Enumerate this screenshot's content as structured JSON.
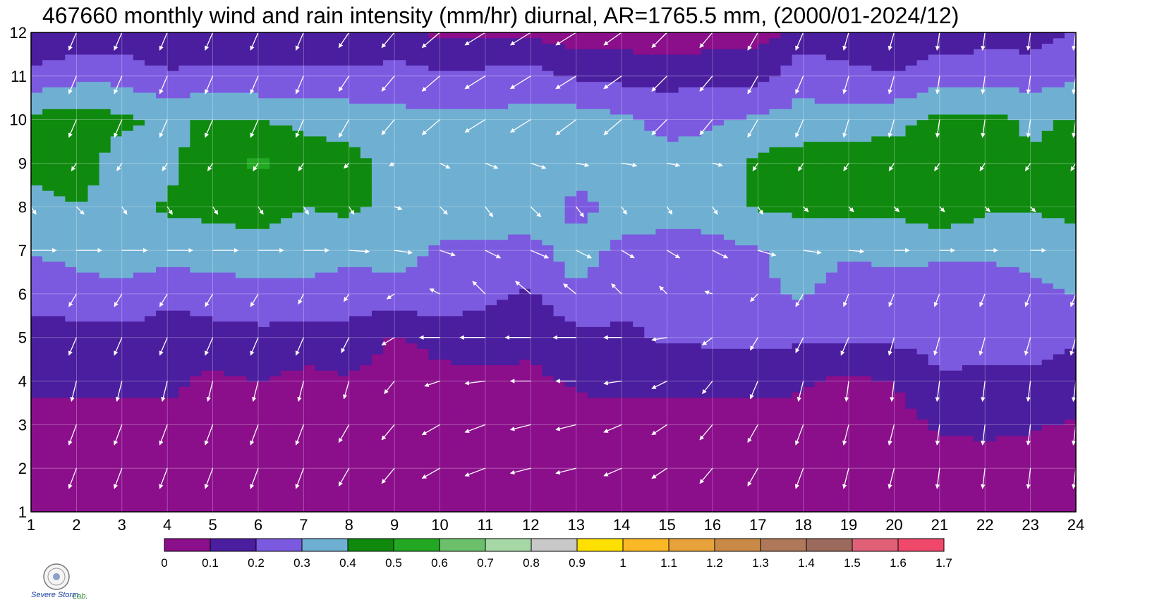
{
  "chart_data": {
    "type": "heatmap",
    "title": "467660 monthly wind and rain intensity (mm/hr) diurnal, AR=1765.5 mm, (2000/01-2024/12)",
    "x_ticks": [
      1,
      2,
      3,
      4,
      5,
      6,
      7,
      8,
      9,
      10,
      11,
      12,
      13,
      14,
      15,
      16,
      17,
      18,
      19,
      20,
      21,
      22,
      23,
      24
    ],
    "y_ticks": [
      1,
      2,
      3,
      4,
      5,
      6,
      7,
      8,
      9,
      10,
      11,
      12
    ],
    "xlim": [
      1,
      24
    ],
    "ylim": [
      1,
      12
    ],
    "grid": true,
    "colorbar": {
      "levels": [
        0,
        0.1,
        0.2,
        0.3,
        0.4,
        0.5,
        0.6,
        0.7,
        0.8,
        0.9,
        1,
        1.1,
        1.2,
        1.3,
        1.4,
        1.5,
        1.6,
        1.7
      ],
      "labels": [
        "0",
        "0.1",
        "0.2",
        "0.3",
        "0.4",
        "0.5",
        "0.6",
        "0.7",
        "0.8",
        "0.9",
        "1",
        "1.1",
        "1.2",
        "1.3",
        "1.4",
        "1.5",
        "1.6",
        "1.7"
      ],
      "colors": [
        "#8b0e8b",
        "#4a1e9e",
        "#7b5ae0",
        "#6fb0d2",
        "#0f8a0f",
        "#22a822",
        "#6cc06c",
        "#a6d8a6",
        "#c8c8c8",
        "#ffe000",
        "#fbb826",
        "#e8a23c",
        "#c98a48",
        "#b0785a",
        "#9c6a5c",
        "#e06078",
        "#f0486a",
        "#d82a40"
      ]
    },
    "rain_grid": [
      [
        0.05,
        0.05,
        0.05,
        0.05,
        0.05,
        0.05,
        0.05,
        0.05,
        0.05,
        0.05,
        0.05,
        0.05,
        0.05,
        0.05,
        0.05,
        0.05,
        0.05,
        0.05,
        0.05,
        0.05,
        0.05,
        0.05,
        0.05,
        0.05
      ],
      [
        0.05,
        0.05,
        0.05,
        0.05,
        0.05,
        0.05,
        0.05,
        0.05,
        0.05,
        0.05,
        0.05,
        0.05,
        0.05,
        0.05,
        0.05,
        0.05,
        0.05,
        0.05,
        0.05,
        0.05,
        0.05,
        0.05,
        0.05,
        0.05
      ],
      [
        0.07,
        0.07,
        0.07,
        0.07,
        0.07,
        0.07,
        0.07,
        0.07,
        0.07,
        0.07,
        0.07,
        0.07,
        0.07,
        0.07,
        0.07,
        0.07,
        0.07,
        0.07,
        0.07,
        0.07,
        0.11,
        0.13,
        0.11,
        0.09
      ],
      [
        0.12,
        0.12,
        0.12,
        0.12,
        0.08,
        0.1,
        0.07,
        0.09,
        0.06,
        0.07,
        0.08,
        0.08,
        0.11,
        0.12,
        0.12,
        0.12,
        0.12,
        0.11,
        0.08,
        0.1,
        0.18,
        0.17,
        0.18,
        0.15
      ],
      [
        0.14,
        0.16,
        0.16,
        0.15,
        0.16,
        0.17,
        0.16,
        0.16,
        0.09,
        0.13,
        0.14,
        0.12,
        0.17,
        0.18,
        0.21,
        0.22,
        0.22,
        0.22,
        0.21,
        0.22,
        0.25,
        0.26,
        0.24,
        0.21
      ],
      [
        0.25,
        0.26,
        0.28,
        0.22,
        0.25,
        0.27,
        0.27,
        0.25,
        0.26,
        0.29,
        0.22,
        0.19,
        0.29,
        0.23,
        0.24,
        0.28,
        0.29,
        0.31,
        0.26,
        0.25,
        0.27,
        0.22,
        0.28,
        0.3
      ],
      [
        0.3,
        0.33,
        0.34,
        0.35,
        0.35,
        0.36,
        0.35,
        0.33,
        0.34,
        0.28,
        0.27,
        0.27,
        0.34,
        0.28,
        0.27,
        0.27,
        0.29,
        0.33,
        0.31,
        0.33,
        0.31,
        0.33,
        0.33,
        0.38
      ],
      [
        0.35,
        0.4,
        0.36,
        0.41,
        0.43,
        0.44,
        0.4,
        0.42,
        0.37,
        0.39,
        0.37,
        0.36,
        0.27,
        0.34,
        0.33,
        0.34,
        0.41,
        0.42,
        0.43,
        0.42,
        0.48,
        0.41,
        0.41,
        0.42
      ],
      [
        0.44,
        0.45,
        0.35,
        0.38,
        0.45,
        0.52,
        0.44,
        0.43,
        0.36,
        0.35,
        0.39,
        0.35,
        0.34,
        0.32,
        0.32,
        0.33,
        0.42,
        0.46,
        0.48,
        0.45,
        0.46,
        0.45,
        0.42,
        0.42
      ],
      [
        0.43,
        0.45,
        0.42,
        0.38,
        0.41,
        0.4,
        0.38,
        0.36,
        0.33,
        0.32,
        0.33,
        0.33,
        0.35,
        0.32,
        0.28,
        0.29,
        0.32,
        0.33,
        0.33,
        0.37,
        0.42,
        0.43,
        0.38,
        0.41
      ],
      [
        0.23,
        0.27,
        0.27,
        0.22,
        0.23,
        0.22,
        0.23,
        0.22,
        0.24,
        0.22,
        0.23,
        0.24,
        0.19,
        0.17,
        0.16,
        0.17,
        0.16,
        0.28,
        0.23,
        0.21,
        0.26,
        0.27,
        0.25,
        0.28
      ],
      [
        0.09,
        0.13,
        0.13,
        0.09,
        0.11,
        0.13,
        0.12,
        0.12,
        0.13,
        0.08,
        0.07,
        0.08,
        0.05,
        0.05,
        0.04,
        0.05,
        0.06,
        0.13,
        0.13,
        0.12,
        0.14,
        0.15,
        0.16,
        0.2
      ]
    ],
    "wind_u": [
      [
        -0.2,
        -0.2,
        -0.3,
        -0.3,
        -0.3,
        -0.3,
        -0.3,
        -0.3,
        -0.4,
        -0.6,
        -0.7,
        -0.7,
        -0.7,
        -0.7,
        -0.6,
        -0.4,
        -0.3,
        -0.3,
        -0.2,
        -0.2,
        -0.1,
        -0.1,
        -0.1,
        -0.1
      ],
      [
        -0.2,
        -0.3,
        -0.3,
        -0.3,
        -0.3,
        -0.3,
        -0.3,
        -0.4,
        -0.5,
        -0.7,
        -0.8,
        -0.8,
        -0.8,
        -0.7,
        -0.6,
        -0.5,
        -0.4,
        -0.3,
        -0.2,
        -0.2,
        -0.1,
        -0.1,
        -0.1,
        -0.1
      ],
      [
        -0.2,
        -0.3,
        -0.3,
        -0.3,
        -0.3,
        -0.3,
        -0.3,
        -0.4,
        -0.5,
        -0.7,
        -0.8,
        -0.8,
        -0.8,
        -0.7,
        -0.6,
        -0.5,
        -0.4,
        -0.3,
        -0.2,
        -0.2,
        -0.1,
        -0.1,
        -0.1,
        -0.1
      ],
      [
        -0.1,
        -0.2,
        -0.2,
        -0.2,
        -0.2,
        -0.2,
        -0.2,
        -0.2,
        -0.4,
        -0.6,
        -0.8,
        -0.8,
        -0.8,
        -0.7,
        -0.6,
        -0.4,
        -0.3,
        -0.2,
        -0.1,
        -0.1,
        -0.1,
        -0.1,
        -0.1,
        -0.1
      ],
      [
        -0.2,
        -0.3,
        -0.3,
        -0.3,
        -0.3,
        -0.3,
        -0.3,
        -0.3,
        -0.5,
        -0.8,
        -1.0,
        -1.0,
        -0.9,
        -0.7,
        -0.6,
        -0.4,
        -0.3,
        -0.3,
        -0.3,
        -0.2,
        -0.2,
        -0.2,
        -0.2,
        -0.2
      ],
      [
        -0.2,
        -0.3,
        -0.3,
        -0.3,
        -0.3,
        -0.3,
        -0.2,
        -0.2,
        -0.3,
        -0.4,
        -0.5,
        -0.6,
        -0.5,
        -0.4,
        -0.3,
        -0.3,
        -0.3,
        -0.3,
        -0.2,
        -0.2,
        -0.2,
        -0.2,
        -0.2,
        -0.2
      ],
      [
        1.0,
        1.0,
        1.0,
        1.0,
        1.0,
        1.0,
        1.0,
        0.8,
        0.7,
        0.6,
        0.6,
        0.7,
        0.6,
        0.5,
        0.5,
        0.6,
        0.7,
        0.7,
        0.6,
        0.6,
        0.6,
        0.5,
        0.6,
        0.8
      ],
      [
        0.2,
        0.3,
        0.2,
        0.2,
        0.2,
        0.2,
        0.2,
        0.2,
        0.3,
        0.3,
        0.3,
        0.4,
        0.3,
        0.2,
        0.2,
        0.2,
        0.2,
        0.2,
        0.2,
        0.2,
        0.2,
        0.2,
        0.2,
        0.2
      ],
      [
        -0.2,
        -0.2,
        -0.2,
        -0.2,
        -0.2,
        -0.2,
        -0.2,
        -0.2,
        -0.2,
        0.4,
        0.5,
        0.6,
        0.5,
        0.6,
        0.5,
        0.4,
        -0.2,
        -0.2,
        -0.2,
        -0.2,
        -0.2,
        -0.2,
        -0.2,
        -0.2
      ],
      [
        -0.2,
        -0.3,
        -0.3,
        -0.3,
        -0.3,
        -0.3,
        -0.3,
        -0.4,
        -0.5,
        -0.7,
        -0.8,
        -0.8,
        -0.8,
        -0.7,
        -0.6,
        -0.5,
        -0.4,
        -0.3,
        -0.2,
        -0.2,
        -0.1,
        -0.1,
        -0.1,
        -0.1
      ],
      [
        -0.2,
        -0.3,
        -0.3,
        -0.3,
        -0.3,
        -0.3,
        -0.3,
        -0.4,
        -0.5,
        -0.7,
        -0.8,
        -0.8,
        -0.8,
        -0.7,
        -0.6,
        -0.5,
        -0.4,
        -0.3,
        -0.2,
        -0.2,
        -0.1,
        -0.1,
        -0.1,
        -0.1
      ],
      [
        -0.2,
        -0.3,
        -0.3,
        -0.3,
        -0.3,
        -0.3,
        -0.3,
        -0.4,
        -0.5,
        -0.7,
        -0.8,
        -0.8,
        -0.8,
        -0.7,
        -0.6,
        -0.5,
        -0.4,
        -0.3,
        -0.2,
        -0.2,
        -0.1,
        -0.1,
        -0.1,
        -0.1
      ]
    ],
    "wind_v": [
      [
        0.8,
        0.8,
        0.8,
        0.8,
        0.8,
        0.8,
        0.8,
        0.7,
        0.6,
        0.4,
        0.3,
        0.2,
        0.2,
        0.3,
        0.4,
        0.6,
        0.7,
        0.8,
        0.8,
        0.8,
        0.8,
        0.8,
        0.8,
        0.8
      ],
      [
        0.8,
        0.8,
        0.8,
        0.8,
        0.8,
        0.8,
        0.8,
        0.7,
        0.6,
        0.4,
        0.3,
        0.2,
        0.2,
        0.3,
        0.4,
        0.6,
        0.7,
        0.8,
        0.8,
        0.8,
        0.8,
        0.8,
        0.8,
        0.8
      ],
      [
        0.8,
        0.8,
        0.8,
        0.8,
        0.8,
        0.8,
        0.8,
        0.7,
        0.6,
        0.4,
        0.3,
        0.2,
        0.2,
        0.3,
        0.4,
        0.6,
        0.7,
        0.8,
        0.8,
        0.8,
        0.8,
        0.8,
        0.8,
        0.8
      ],
      [
        0.8,
        0.8,
        0.8,
        0.8,
        0.8,
        0.8,
        0.8,
        0.7,
        0.5,
        0.2,
        0.1,
        0.0,
        0.0,
        0.1,
        0.3,
        0.5,
        0.7,
        0.8,
        0.8,
        0.8,
        0.8,
        0.8,
        0.8,
        0.8
      ],
      [
        0.7,
        0.7,
        0.7,
        0.7,
        0.7,
        0.7,
        0.7,
        0.6,
        0.3,
        0.0,
        0.0,
        0.0,
        0.0,
        0.0,
        0.1,
        0.3,
        0.5,
        0.6,
        0.7,
        0.7,
        0.7,
        0.7,
        0.7,
        0.7
      ],
      [
        0.5,
        0.5,
        0.5,
        0.5,
        0.5,
        0.5,
        0.4,
        0.3,
        0.2,
        -0.2,
        -0.5,
        -0.5,
        -0.4,
        -0.4,
        -0.3,
        -0.1,
        0.3,
        0.5,
        0.5,
        0.5,
        0.5,
        0.5,
        0.5,
        0.5
      ],
      [
        0.0,
        0.0,
        0.0,
        0.0,
        0.0,
        0.0,
        0.0,
        0.05,
        0.1,
        0.2,
        0.3,
        0.3,
        0.3,
        0.3,
        0.3,
        0.3,
        0.2,
        0.1,
        0.05,
        0.0,
        0.0,
        0.0,
        0.0,
        0.0
      ],
      [
        0.3,
        0.3,
        0.3,
        0.3,
        0.3,
        0.3,
        0.3,
        0.3,
        0.1,
        0.3,
        0.4,
        0.4,
        0.4,
        0.3,
        0.3,
        0.3,
        0.3,
        0.2,
        0.2,
        0.2,
        0.2,
        0.2,
        0.2,
        0.2
      ],
      [
        0.3,
        0.3,
        0.3,
        0.3,
        0.3,
        0.3,
        0.3,
        0.2,
        0.1,
        0.2,
        0.2,
        0.2,
        0.1,
        0.1,
        0.1,
        0.1,
        0.3,
        0.3,
        0.3,
        0.3,
        0.3,
        0.3,
        0.3,
        0.3
      ],
      [
        0.6,
        0.7,
        0.7,
        0.7,
        0.7,
        0.7,
        0.7,
        0.7,
        0.6,
        0.6,
        0.5,
        0.5,
        0.6,
        0.6,
        0.6,
        0.6,
        0.7,
        0.7,
        0.7,
        0.7,
        0.7,
        0.7,
        0.7,
        0.7
      ],
      [
        0.6,
        0.7,
        0.7,
        0.7,
        0.7,
        0.7,
        0.7,
        0.6,
        0.6,
        0.6,
        0.5,
        0.5,
        0.5,
        0.5,
        0.6,
        0.6,
        0.7,
        0.7,
        0.7,
        0.7,
        0.7,
        0.7,
        0.7,
        0.7
      ],
      [
        0.6,
        0.7,
        0.7,
        0.7,
        0.7,
        0.7,
        0.7,
        0.6,
        0.6,
        0.6,
        0.5,
        0.5,
        0.5,
        0.5,
        0.6,
        0.6,
        0.7,
        0.7,
        0.7,
        0.7,
        0.7,
        0.7,
        0.7,
        0.7
      ]
    ],
    "ylabel": "",
    "xlabel": ""
  },
  "logo": {
    "text": "Severe Storm",
    "lab": "Lab."
  }
}
